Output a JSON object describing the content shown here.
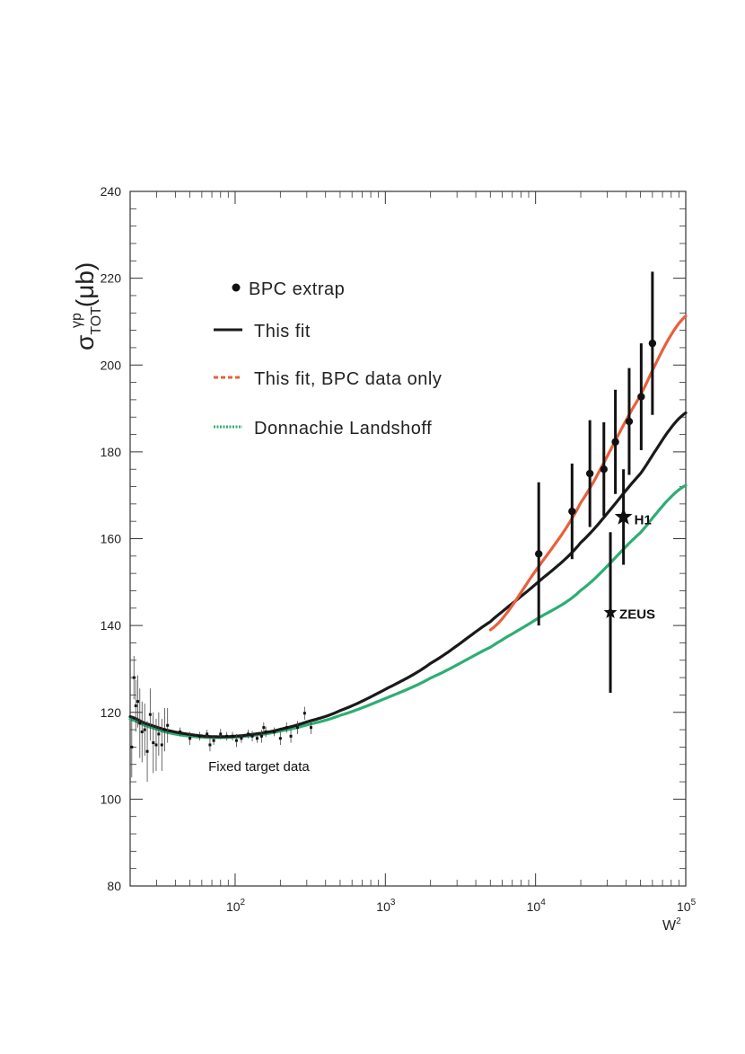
{
  "chart_data": {
    "type": "scatter",
    "title": "",
    "xlabel": "W²",
    "xlabel_base": "W",
    "xlabel_sup": "2",
    "ylabel": "σTOT γp (μb)",
    "ylabel_parts": {
      "sigma": "σ",
      "sub": "TOT",
      "sup": "γp",
      "unit": "(μb)"
    },
    "xscale": "log",
    "xlim": [
      20,
      100000
    ],
    "ylim": [
      80,
      240
    ],
    "yticks": [
      80,
      100,
      120,
      140,
      160,
      180,
      200,
      220,
      240
    ],
    "yticks_text": [
      "80",
      "100",
      "120",
      "140",
      "160",
      "180",
      "200",
      "220",
      "240"
    ],
    "xticks": [
      {
        "value": 100,
        "base": "10",
        "exp": "2"
      },
      {
        "value": 1000,
        "base": "10",
        "exp": "3"
      },
      {
        "value": 10000,
        "base": "10",
        "exp": "4"
      },
      {
        "value": 100000,
        "base": "10",
        "exp": "5"
      }
    ],
    "series": [
      {
        "name": "BPC extrap",
        "kind": "points",
        "color": "#111111",
        "points": [
          {
            "x": 10500,
            "y": 156.5,
            "err": 16.5
          },
          {
            "x": 17500,
            "y": 166.3,
            "err": 11.0
          },
          {
            "x": 23000,
            "y": 175.0,
            "err": 12.3
          },
          {
            "x": 28500,
            "y": 176.0,
            "err": 10.8
          },
          {
            "x": 34000,
            "y": 182.3,
            "err": 12.0
          },
          {
            "x": 42000,
            "y": 187.0,
            "err": 12.3
          },
          {
            "x": 50500,
            "y": 192.7,
            "err": 12.3
          },
          {
            "x": 60000,
            "y": 205.0,
            "err": 16.5
          }
        ]
      },
      {
        "name": "This fit",
        "kind": "line",
        "color": "#1a1a1a",
        "x": [
          20,
          25,
          35,
          50,
          70,
          100,
          150,
          200,
          300,
          500,
          1000,
          2000,
          5000,
          10000,
          20000,
          50000,
          100000
        ],
        "values": [
          119.0,
          117.5,
          115.9,
          114.9,
          114.4,
          114.5,
          115.2,
          116.1,
          117.8,
          120.4,
          125.3,
          131.3,
          140.9,
          149.5,
          159.1,
          175.0,
          189.0
        ]
      },
      {
        "name": "This fit, BPC data only",
        "kind": "line",
        "color": "#e8603c",
        "x": [
          5000,
          10000,
          20000,
          50000,
          100000
        ],
        "values": [
          139.0,
          152.6,
          168.3,
          193.0,
          211.3
        ]
      },
      {
        "name": "Donnachie Landshoff",
        "kind": "line",
        "color": "#2dae74",
        "x": [
          20,
          25,
          35,
          50,
          70,
          100,
          150,
          200,
          300,
          500,
          1000,
          2000,
          5000,
          10000,
          20000,
          50000,
          100000
        ],
        "values": [
          118.4,
          117.0,
          115.4,
          114.5,
          114.2,
          114.3,
          114.9,
          115.7,
          117.1,
          119.3,
          123.2,
          127.9,
          135.0,
          141.3,
          148.1,
          161.4,
          172.3
        ]
      },
      {
        "name": "Fixed target data",
        "kind": "small-points",
        "color": "#111111",
        "points": [
          {
            "x": 20.5,
            "y": 112.0,
            "err": 7
          },
          {
            "x": 21.2,
            "y": 128.0,
            "err": 5
          },
          {
            "x": 21.8,
            "y": 121.5,
            "err": 6
          },
          {
            "x": 22.5,
            "y": 122.5,
            "err": 6
          },
          {
            "x": 23.2,
            "y": 117.5,
            "err": 8
          },
          {
            "x": 24.0,
            "y": 115.5,
            "err": 7
          },
          {
            "x": 25.0,
            "y": 116.0,
            "err": 6
          },
          {
            "x": 26.0,
            "y": 111.0,
            "err": 7
          },
          {
            "x": 27.2,
            "y": 119.5,
            "err": 6
          },
          {
            "x": 28.5,
            "y": 113.0,
            "err": 7
          },
          {
            "x": 29.8,
            "y": 112.5,
            "err": 6
          },
          {
            "x": 31.0,
            "y": 115.0,
            "err": 5
          },
          {
            "x": 32.5,
            "y": 112.5,
            "err": 6
          },
          {
            "x": 34.0,
            "y": 116.0,
            "err": 5
          },
          {
            "x": 35.5,
            "y": 117.0,
            "err": 4
          },
          {
            "x": 43.0,
            "y": 115.5,
            "err": 1
          },
          {
            "x": 50.0,
            "y": 114.0,
            "err": 1.5
          },
          {
            "x": 58.0,
            "y": 114.5,
            "err": 1
          },
          {
            "x": 65.0,
            "y": 115.0,
            "err": 1
          },
          {
            "x": 68.0,
            "y": 112.5,
            "err": 1.5
          },
          {
            "x": 72.0,
            "y": 113.5,
            "err": 1
          },
          {
            "x": 80.0,
            "y": 115.0,
            "err": 1.2
          },
          {
            "x": 88.0,
            "y": 114.5,
            "err": 1
          },
          {
            "x": 96.0,
            "y": 114.5,
            "err": 1
          },
          {
            "x": 102.0,
            "y": 113.5,
            "err": 1.5
          },
          {
            "x": 110.0,
            "y": 114.0,
            "err": 1
          },
          {
            "x": 122.0,
            "y": 115.0,
            "err": 1
          },
          {
            "x": 130.0,
            "y": 114.5,
            "err": 1.2
          },
          {
            "x": 140.0,
            "y": 114.0,
            "err": 1
          },
          {
            "x": 150.0,
            "y": 114.5,
            "err": 1.5
          },
          {
            "x": 155.0,
            "y": 116.5,
            "err": 1.2
          },
          {
            "x": 160.0,
            "y": 115.5,
            "err": 1.2
          },
          {
            "x": 182.0,
            "y": 115.5,
            "err": 1
          },
          {
            "x": 200.0,
            "y": 114.0,
            "err": 1.5
          },
          {
            "x": 220.0,
            "y": 116.5,
            "err": 1.2
          },
          {
            "x": 235.0,
            "y": 114.5,
            "err": 1.5
          },
          {
            "x": 260.0,
            "y": 116.5,
            "err": 1.5
          },
          {
            "x": 290.0,
            "y": 119.8,
            "err": 1.5
          },
          {
            "x": 320.0,
            "y": 116.5,
            "err": 1.5
          }
        ]
      },
      {
        "name": "H1",
        "kind": "star",
        "color": "#111111",
        "points": [
          {
            "x": 38500,
            "y": 165.0,
            "err": 11.0
          }
        ]
      },
      {
        "name": "ZEUS",
        "kind": "star",
        "color": "#111111",
        "points": [
          {
            "x": 31500,
            "y": 143.0,
            "err": 18.5
          }
        ]
      }
    ],
    "legend": [
      {
        "label": "BPC extrap",
        "style": "dot",
        "color": "#111111"
      },
      {
        "label": "This fit",
        "style": "solid",
        "color": "#1a1a1a"
      },
      {
        "label": "This fit, BPC data only",
        "style": "dashed",
        "color": "#e8603c"
      },
      {
        "label": "Donnachie Landshoff",
        "style": "dotted",
        "color": "#2dae74"
      }
    ],
    "legend_position": "top-left",
    "annotations": [
      {
        "text": "Fixed target data",
        "x": 150,
        "y": 107.5
      },
      {
        "text": "H1",
        "x": 38500,
        "y": 165.0
      },
      {
        "text": "ZEUS",
        "x": 31500,
        "y": 143.0
      }
    ]
  }
}
